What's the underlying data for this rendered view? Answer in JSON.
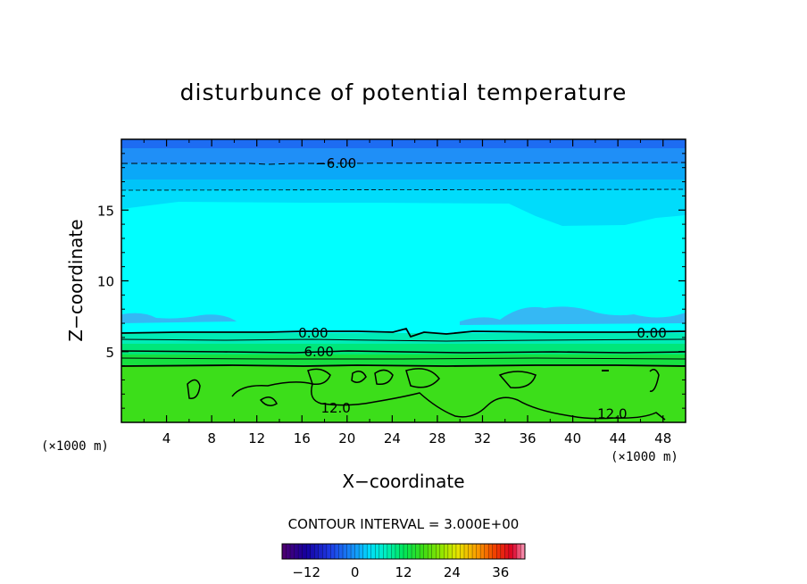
{
  "chart_data": {
    "type": "contour",
    "title": "disturbunce of potential temperature",
    "xlabel": "X−coordinate",
    "ylabel": "Z−coordinate",
    "x_unit_left": "(×1000 m)",
    "x_unit_right": "(×1000 m)",
    "xlim": [
      0,
      50
    ],
    "ylim": [
      0,
      20
    ],
    "x_ticks": [
      4,
      8,
      12,
      16,
      20,
      24,
      28,
      32,
      36,
      40,
      44,
      48
    ],
    "y_ticks": [
      5,
      10,
      15
    ],
    "contour_interval_text": "CONTOUR INTERVAL = 3.000E+00",
    "contour_labels": [
      {
        "text": "−6.00",
        "x": 19,
        "z": 18.3
      },
      {
        "text": "0.00",
        "x": 17,
        "z": 6.3
      },
      {
        "text": "0.00",
        "x": 47,
        "z": 6.3
      },
      {
        "text": "6.00",
        "x": 17.5,
        "z": 5.0
      },
      {
        "text": "12.0",
        "x": 19,
        "z": 1.0
      },
      {
        "text": "12.0",
        "x": 43.5,
        "z": 0.6
      }
    ],
    "approx_field_levels": [
      {
        "z": 19.5,
        "value": -9
      },
      {
        "z": 18.3,
        "value": -6
      },
      {
        "z": 16.4,
        "value": -3
      },
      {
        "z": 10,
        "value": 0
      },
      {
        "z": 6.3,
        "value": 0
      },
      {
        "z": 5.0,
        "value": 6
      },
      {
        "z": 2.0,
        "value": 12
      }
    ],
    "colorbar": {
      "range": [
        -18,
        42
      ],
      "tick_labels": [
        "−12",
        "0",
        "12",
        "24",
        "36"
      ],
      "tick_values": [
        -12,
        0,
        12,
        24,
        36
      ]
    },
    "grid": false
  }
}
